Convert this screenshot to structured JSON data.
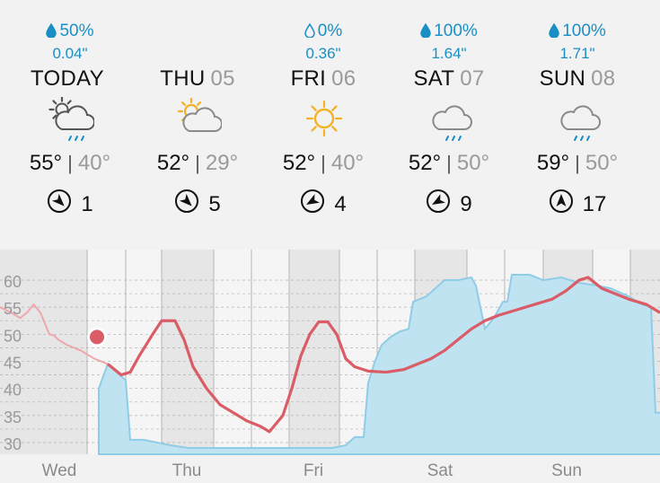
{
  "forecast": [
    {
      "precip_chance": "50%",
      "precip_amount": "0.04\"",
      "day": "TODAY",
      "date": "",
      "icon": "partly-cloudy-rain-icon",
      "high": "55°",
      "low": "40°",
      "wind": "1",
      "wind_dir": 135,
      "drop_filled": true
    },
    {
      "precip_chance": "",
      "precip_amount": "",
      "day": "THU",
      "date": "05",
      "icon": "sun-cloud-icon",
      "high": "52°",
      "low": "29°",
      "wind": "5",
      "wind_dir": 135,
      "drop_filled": true
    },
    {
      "precip_chance": "0%",
      "precip_amount": "0.36\"",
      "day": "FRI",
      "date": "06",
      "icon": "sun-icon",
      "high": "52°",
      "low": "40°",
      "wind": "4",
      "wind_dir": -120,
      "drop_filled": false
    },
    {
      "precip_chance": "100%",
      "precip_amount": "1.64\"",
      "day": "SAT",
      "date": "07",
      "icon": "cloud-rain-icon",
      "high": "52°",
      "low": "50°",
      "wind": "9",
      "wind_dir": -120,
      "drop_filled": true
    },
    {
      "precip_chance": "100%",
      "precip_amount": "1.71\"",
      "day": "SUN",
      "date": "08",
      "icon": "cloud-rain-icon",
      "high": "59°",
      "low": "50°",
      "wind": "17",
      "wind_dir": 0,
      "drop_filled": true
    }
  ],
  "colors": {
    "precip": "#1a8fc4",
    "temp_line": "#d95c66",
    "precip_fill": "#bfe3f1",
    "precip_edge": "#8fcde6",
    "grid": "#9a9a9a",
    "label": "#9a9a9a"
  },
  "chart_data": {
    "type": "line",
    "y_ticks": [
      "60",
      "55",
      "50",
      "45",
      "40",
      "35",
      "30"
    ],
    "ylim": [
      28,
      62
    ],
    "x_labels": [
      "Wed",
      "Thu",
      "Fri",
      "Sat",
      "Sun"
    ],
    "series": [
      {
        "values": [
          [
            0,
            55
          ],
          [
            0.25,
            54
          ],
          [
            0.45,
            53
          ],
          [
            0.6,
            54
          ],
          [
            0.75,
            55.5
          ],
          [
            0.9,
            54
          ],
          [
            1.0,
            52
          ],
          [
            1.1,
            50
          ],
          [
            1.2,
            49.8
          ],
          [
            1.3,
            49
          ],
          [
            1.5,
            48
          ],
          [
            1.8,
            47
          ],
          [
            2.1,
            45.5
          ],
          [
            2.4,
            44.5
          ],
          [
            2.7,
            42.5
          ],
          [
            2.9,
            43
          ],
          [
            3.1,
            46
          ],
          [
            3.4,
            50
          ],
          [
            3.6,
            52.5
          ],
          [
            3.9,
            52.5
          ],
          [
            4.1,
            49
          ],
          [
            4.3,
            44
          ],
          [
            4.6,
            40
          ],
          [
            4.9,
            37
          ],
          [
            5.2,
            35.5
          ],
          [
            5.5,
            34
          ],
          [
            5.8,
            33
          ],
          [
            6.0,
            32
          ],
          [
            6.3,
            35
          ],
          [
            6.5,
            40
          ],
          [
            6.7,
            46
          ],
          [
            6.9,
            50
          ],
          [
            7.1,
            52.3
          ],
          [
            7.3,
            52.3
          ],
          [
            7.5,
            50
          ],
          [
            7.7,
            45.5
          ],
          [
            7.9,
            44
          ],
          [
            8.2,
            43.2
          ],
          [
            8.6,
            43
          ],
          [
            9.0,
            43.5
          ],
          [
            9.3,
            44.5
          ],
          [
            9.6,
            45.5
          ],
          [
            9.9,
            47
          ],
          [
            10.2,
            49
          ],
          [
            10.5,
            51
          ],
          [
            10.8,
            52.5
          ],
          [
            11.1,
            53.5
          ],
          [
            11.5,
            54.5
          ],
          [
            11.9,
            55.5
          ],
          [
            12.3,
            56.5
          ],
          [
            12.6,
            58
          ],
          [
            12.9,
            60
          ],
          [
            13.1,
            60.5
          ],
          [
            13.4,
            58.5
          ],
          [
            13.7,
            57.5
          ],
          [
            14.0,
            56.5
          ],
          [
            14.4,
            55.5
          ],
          [
            14.7,
            54
          ]
        ]
      },
      {
        "values": [
          [
            2.2,
            40
          ],
          [
            2.4,
            44.5
          ],
          [
            2.6,
            43
          ],
          [
            2.8,
            41.5
          ],
          [
            2.9,
            30.5
          ],
          [
            3.2,
            30.5
          ],
          [
            3.5,
            30
          ],
          [
            3.8,
            29.5
          ],
          [
            4.2,
            29
          ],
          [
            4.8,
            29
          ],
          [
            5.4,
            29
          ],
          [
            6.0,
            29
          ],
          [
            6.8,
            29
          ],
          [
            7.4,
            29
          ],
          [
            7.7,
            29.5
          ],
          [
            7.9,
            31
          ],
          [
            8.1,
            31
          ],
          [
            8.2,
            41
          ],
          [
            8.35,
            45
          ],
          [
            8.5,
            48
          ],
          [
            8.7,
            49.5
          ],
          [
            8.9,
            50.5
          ],
          [
            9.1,
            51
          ],
          [
            9.2,
            56
          ],
          [
            9.5,
            57
          ],
          [
            9.9,
            60
          ],
          [
            10.2,
            60
          ],
          [
            10.5,
            60.5
          ],
          [
            10.6,
            59
          ],
          [
            10.8,
            51
          ],
          [
            11.0,
            53
          ],
          [
            11.2,
            56
          ],
          [
            11.3,
            56
          ],
          [
            11.4,
            61
          ],
          [
            11.8,
            61
          ],
          [
            12.1,
            60
          ],
          [
            12.5,
            60.5
          ],
          [
            12.9,
            59.5
          ],
          [
            13.3,
            59
          ],
          [
            13.6,
            58.5
          ],
          [
            14.0,
            57
          ],
          [
            14.3,
            55.5
          ],
          [
            14.5,
            55
          ],
          [
            14.6,
            35.5
          ],
          [
            14.8,
            35.5
          ]
        ]
      }
    ]
  }
}
